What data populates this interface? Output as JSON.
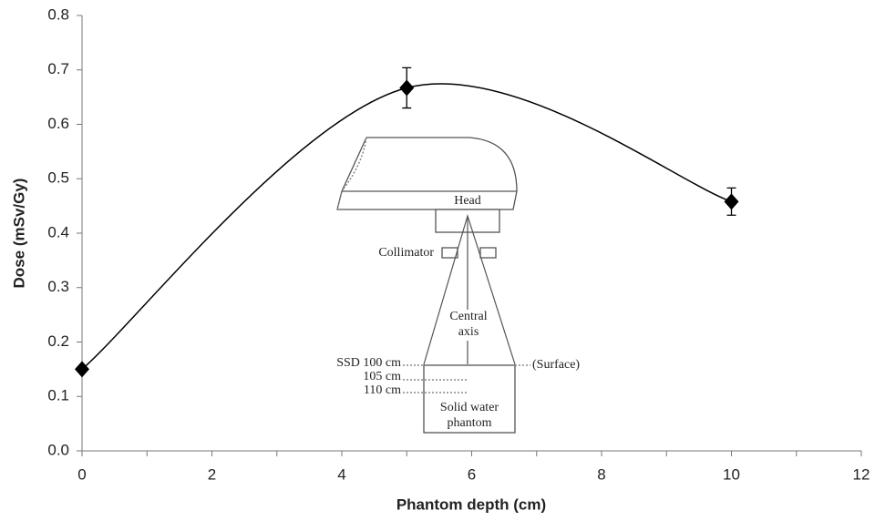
{
  "chart_data": {
    "type": "scatter",
    "x_label": "Phantom depth (cm)",
    "y_label": "Dose  (mSv/Gy)",
    "x": [
      0,
      5,
      10
    ],
    "values": [
      0.15,
      0.667,
      0.458
    ],
    "errors": [
      null,
      0.037,
      0.025
    ],
    "color": "#000000",
    "smooth_line": true,
    "xlim": [
      0,
      12
    ],
    "xticks": [
      0,
      2,
      4,
      6,
      8,
      10,
      12
    ],
    "xminor_ticks": [
      1,
      3,
      5,
      7,
      9,
      11
    ],
    "ylim": [
      0,
      0.8
    ],
    "yticks": [
      {
        "value": 0,
        "label": "0.0"
      },
      0.1,
      0.2,
      0.3,
      0.4,
      0.5,
      0.6,
      0.7,
      0.8
    ],
    "inset": {
      "head": "Head",
      "collimator": "Collimator",
      "central_axis": [
        "Central",
        "axis"
      ],
      "ssd": "SSD 100 cm",
      "depth_105": "105 cm",
      "depth_110": "110 cm",
      "surface": "(Surface)",
      "phantom": [
        "Solid water",
        "phantom"
      ]
    }
  }
}
